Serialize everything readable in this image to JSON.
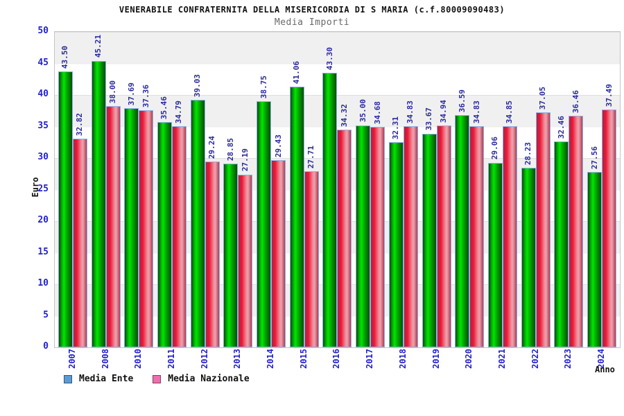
{
  "header": {
    "title": "VENERABILE CONFRATERNITA DELLA MISERICORDIA DI S MARIA (c.f.80009090483)",
    "subtitle": "Media Importi"
  },
  "chart_data": {
    "type": "bar",
    "title": "Media Importi",
    "xlabel": "Anno",
    "ylabel": "Euro",
    "ylim": [
      0,
      50
    ],
    "yticks": [
      0,
      5,
      10,
      15,
      20,
      25,
      30,
      35,
      40,
      45,
      50
    ],
    "grid": "horizontal-bands-every-5",
    "legend_position": "bottom-left",
    "categories": [
      "2007",
      "2008",
      "2010",
      "2011",
      "2012",
      "2013",
      "2014",
      "2015",
      "2016",
      "2017",
      "2018",
      "2019",
      "2020",
      "2021",
      "2022",
      "2023",
      "2024"
    ],
    "series": [
      {
        "name": "Media Ente",
        "values": [
          43.5,
          45.21,
          37.69,
          35.46,
          39.03,
          28.85,
          38.75,
          41.06,
          43.3,
          35.0,
          32.31,
          33.67,
          36.59,
          29.06,
          28.23,
          32.46,
          27.56
        ],
        "gradient_stops": [
          "#0a4d0a 0%",
          "#00c800 28%",
          "#00e600 38%",
          "#00a400 62%",
          "#0a4d0a 100%"
        ]
      },
      {
        "name": "Media Nazionale",
        "values": [
          32.82,
          38.0,
          37.36,
          34.79,
          29.24,
          27.19,
          29.43,
          27.71,
          34.32,
          34.68,
          34.83,
          34.94,
          34.83,
          34.85,
          37.05,
          36.46,
          37.49
        ],
        "gradient_stops": [
          "#ad2340 0%",
          "#ee1836 26%",
          "#ef8f9d 60%",
          "#e9a2ac 72%",
          "#b43a52 100%"
        ]
      }
    ],
    "legend": [
      {
        "label": "Media Ente",
        "swatch": "#5b9bd5"
      },
      {
        "label": "Media Nazionale",
        "swatch": "#ef6eae"
      }
    ],
    "colors": {
      "tick_label": "#2222cc",
      "value_label": "#2a2a9e",
      "band_gray": "#f0f0f0",
      "band_white": "#ffffff",
      "bar_outline": "#8fb0e4"
    }
  }
}
